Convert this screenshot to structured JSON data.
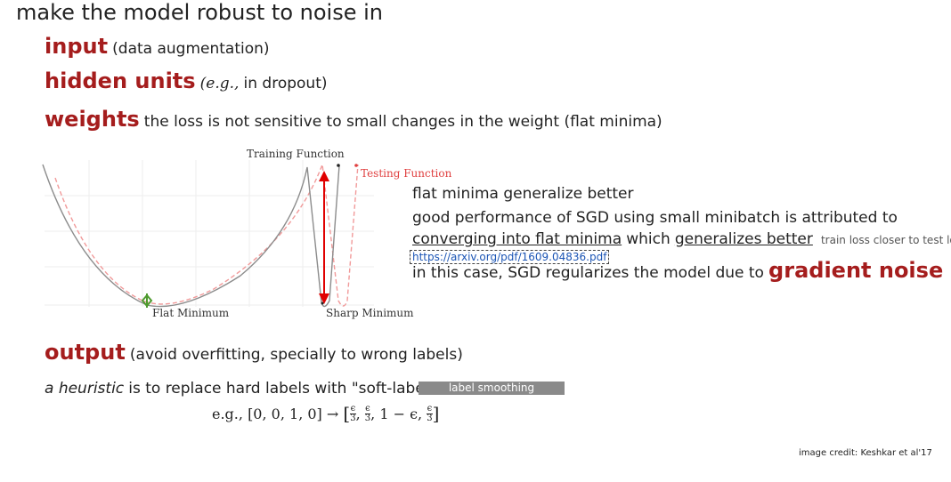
{
  "title": "make the model robust to noise in",
  "items": {
    "input": {
      "keyword": "input",
      "desc": "(data augmentation)"
    },
    "hidden": {
      "keyword": "hidden units",
      "desc_italic": "(e.g.,",
      "desc": "in dropout)"
    },
    "weights": {
      "keyword": "weights",
      "desc": "the loss is not sensitive to small changes in the weight (flat minima)"
    },
    "output": {
      "keyword": "output",
      "desc": "(avoid overfitting, specially to wrong labels)"
    }
  },
  "figure": {
    "training_label": "Training Function",
    "testing_label": "Testing Function",
    "flat_label": "Flat Minimum",
    "sharp_label": "Sharp Minimum",
    "colors": {
      "training": "#8c8c8c",
      "testing": "#f19a9a",
      "arrow": "#e00000",
      "flat_marker": "#4e9a2e"
    }
  },
  "side_notes": {
    "line1": "flat minima generalize better",
    "line2": "good performance of SGD using small minibatch is attributed to",
    "line3a": "converging into flat minima",
    "line3b": "which",
    "line3c": "generalizes better",
    "line3_note": "train loss closer to test loss",
    "link": "https://arxiv.org/pdf/1609.04836.pdf",
    "line4": "in this case, SGD regularizes the model due to",
    "line4_kw": "gradient noise"
  },
  "heuristic": {
    "italic": "a heuristic",
    "text": "is to replace hard labels with \"soft-labels\"",
    "tag": "label smoothing",
    "eg_prefix": "e.g.,",
    "hard": "[0, 0, 1, 0]",
    "arrow": "→",
    "soft_open": "[",
    "soft_close": "]",
    "eps": "ϵ",
    "three": "3",
    "one_minus": "1 − ϵ",
    "comma": ","
  },
  "credit": "image credit: Keshkar et al'17",
  "colors": {
    "accent": "#a51d1d",
    "tag_bg": "#8a8a8a",
    "link": "#1b55b5"
  }
}
